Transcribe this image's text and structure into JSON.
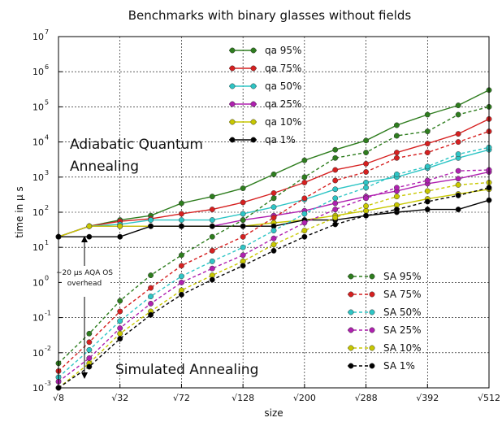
{
  "chart_data": {
    "type": "line",
    "title": "Benchmarks with binary glasses without fields",
    "xlabel": "size",
    "ylabel": "time in μ s",
    "yscale": "log",
    "ylim": [
      0.001,
      10000000
    ],
    "xlim": [
      8,
      512
    ],
    "x": [
      8,
      18,
      32,
      50,
      72,
      98,
      128,
      162,
      200,
      242,
      288,
      338,
      392,
      450,
      512
    ],
    "x_tick_values": [
      8,
      32,
      72,
      128,
      200,
      288,
      392,
      512
    ],
    "x_tick_labels": [
      "√8",
      "√32",
      "√72",
      "√128",
      "√200",
      "√288",
      "√392",
      "√512"
    ],
    "y_tick_exponents": [
      -3,
      -2,
      -1,
      0,
      1,
      2,
      3,
      4,
      5,
      6,
      7
    ],
    "grid": true,
    "series": [
      {
        "name": "qa 95%",
        "color": "#2e7d1e",
        "style": "solid",
        "values": [
          20,
          40,
          60,
          80,
          180,
          280,
          480,
          1200,
          3000,
          6000,
          11000,
          30000,
          60000,
          110000,
          300000
        ]
      },
      {
        "name": "qa 75%",
        "color": "#d62020",
        "style": "solid",
        "values": [
          20,
          40,
          55,
          65,
          90,
          120,
          190,
          350,
          700,
          1600,
          2400,
          5000,
          9000,
          17000,
          45000
        ]
      },
      {
        "name": "qa 50%",
        "color": "#2ec5c5",
        "style": "solid",
        "values": [
          20,
          40,
          45,
          60,
          60,
          60,
          90,
          140,
          230,
          450,
          700,
          1000,
          1800,
          3500,
          6000
        ]
      },
      {
        "name": "qa 25%",
        "color": "#b020b0",
        "style": "solid",
        "values": [
          20,
          40,
          40,
          40,
          40,
          40,
          60,
          80,
          110,
          180,
          280,
          400,
          650,
          900,
          1400
        ]
      },
      {
        "name": "qa 10%",
        "color": "#c8c800",
        "style": "solid",
        "values": [
          20,
          40,
          40,
          40,
          40,
          40,
          40,
          50,
          60,
          80,
          110,
          160,
          240,
          330,
          450
        ]
      },
      {
        "name": "qa 1%",
        "color": "#000000",
        "style": "solid",
        "values": [
          20,
          20,
          20,
          40,
          40,
          40,
          40,
          40,
          60,
          60,
          80,
          100,
          120,
          120,
          220
        ]
      },
      {
        "name": "SA 95%",
        "color": "#2e7d1e",
        "style": "dashed",
        "values": [
          0.005,
          0.035,
          0.3,
          1.6,
          6,
          20,
          60,
          250,
          1000,
          3500,
          5000,
          15000,
          20000,
          60000,
          100000
        ]
      },
      {
        "name": "SA 75%",
        "color": "#d62020",
        "style": "dashed",
        "values": [
          0.003,
          0.02,
          0.15,
          0.7,
          3,
          8,
          20,
          70,
          250,
          800,
          1400,
          3500,
          5000,
          10000,
          20000
        ]
      },
      {
        "name": "SA 50%",
        "color": "#2ec5c5",
        "style": "dashed",
        "values": [
          0.002,
          0.012,
          0.08,
          0.4,
          1.5,
          4,
          10,
          30,
          90,
          250,
          500,
          1200,
          2000,
          4500,
          7000
        ]
      },
      {
        "name": "SA 25%",
        "color": "#b020b0",
        "style": "dashed",
        "values": [
          0.0015,
          0.007,
          0.05,
          0.25,
          1,
          2.5,
          6,
          18,
          50,
          120,
          250,
          500,
          800,
          1500,
          1600
        ]
      },
      {
        "name": "SA 10%",
        "color": "#c8c800",
        "style": "dashed",
        "values": [
          0.001,
          0.005,
          0.035,
          0.15,
          0.6,
          1.6,
          4,
          12,
          30,
          70,
          150,
          280,
          400,
          600,
          700
        ]
      },
      {
        "name": "SA 1%",
        "color": "#000000",
        "style": "dashed",
        "values": [
          0.001,
          0.004,
          0.025,
          0.12,
          0.45,
          1.2,
          3,
          8,
          20,
          45,
          80,
          120,
          200,
          300,
          500
        ]
      }
    ],
    "annotations": {
      "qa_region": "Adiabatic Quantum Annealing",
      "sa_region": "Simulated Annealing",
      "overhead": "~20 μs AQA OS overhead"
    }
  }
}
